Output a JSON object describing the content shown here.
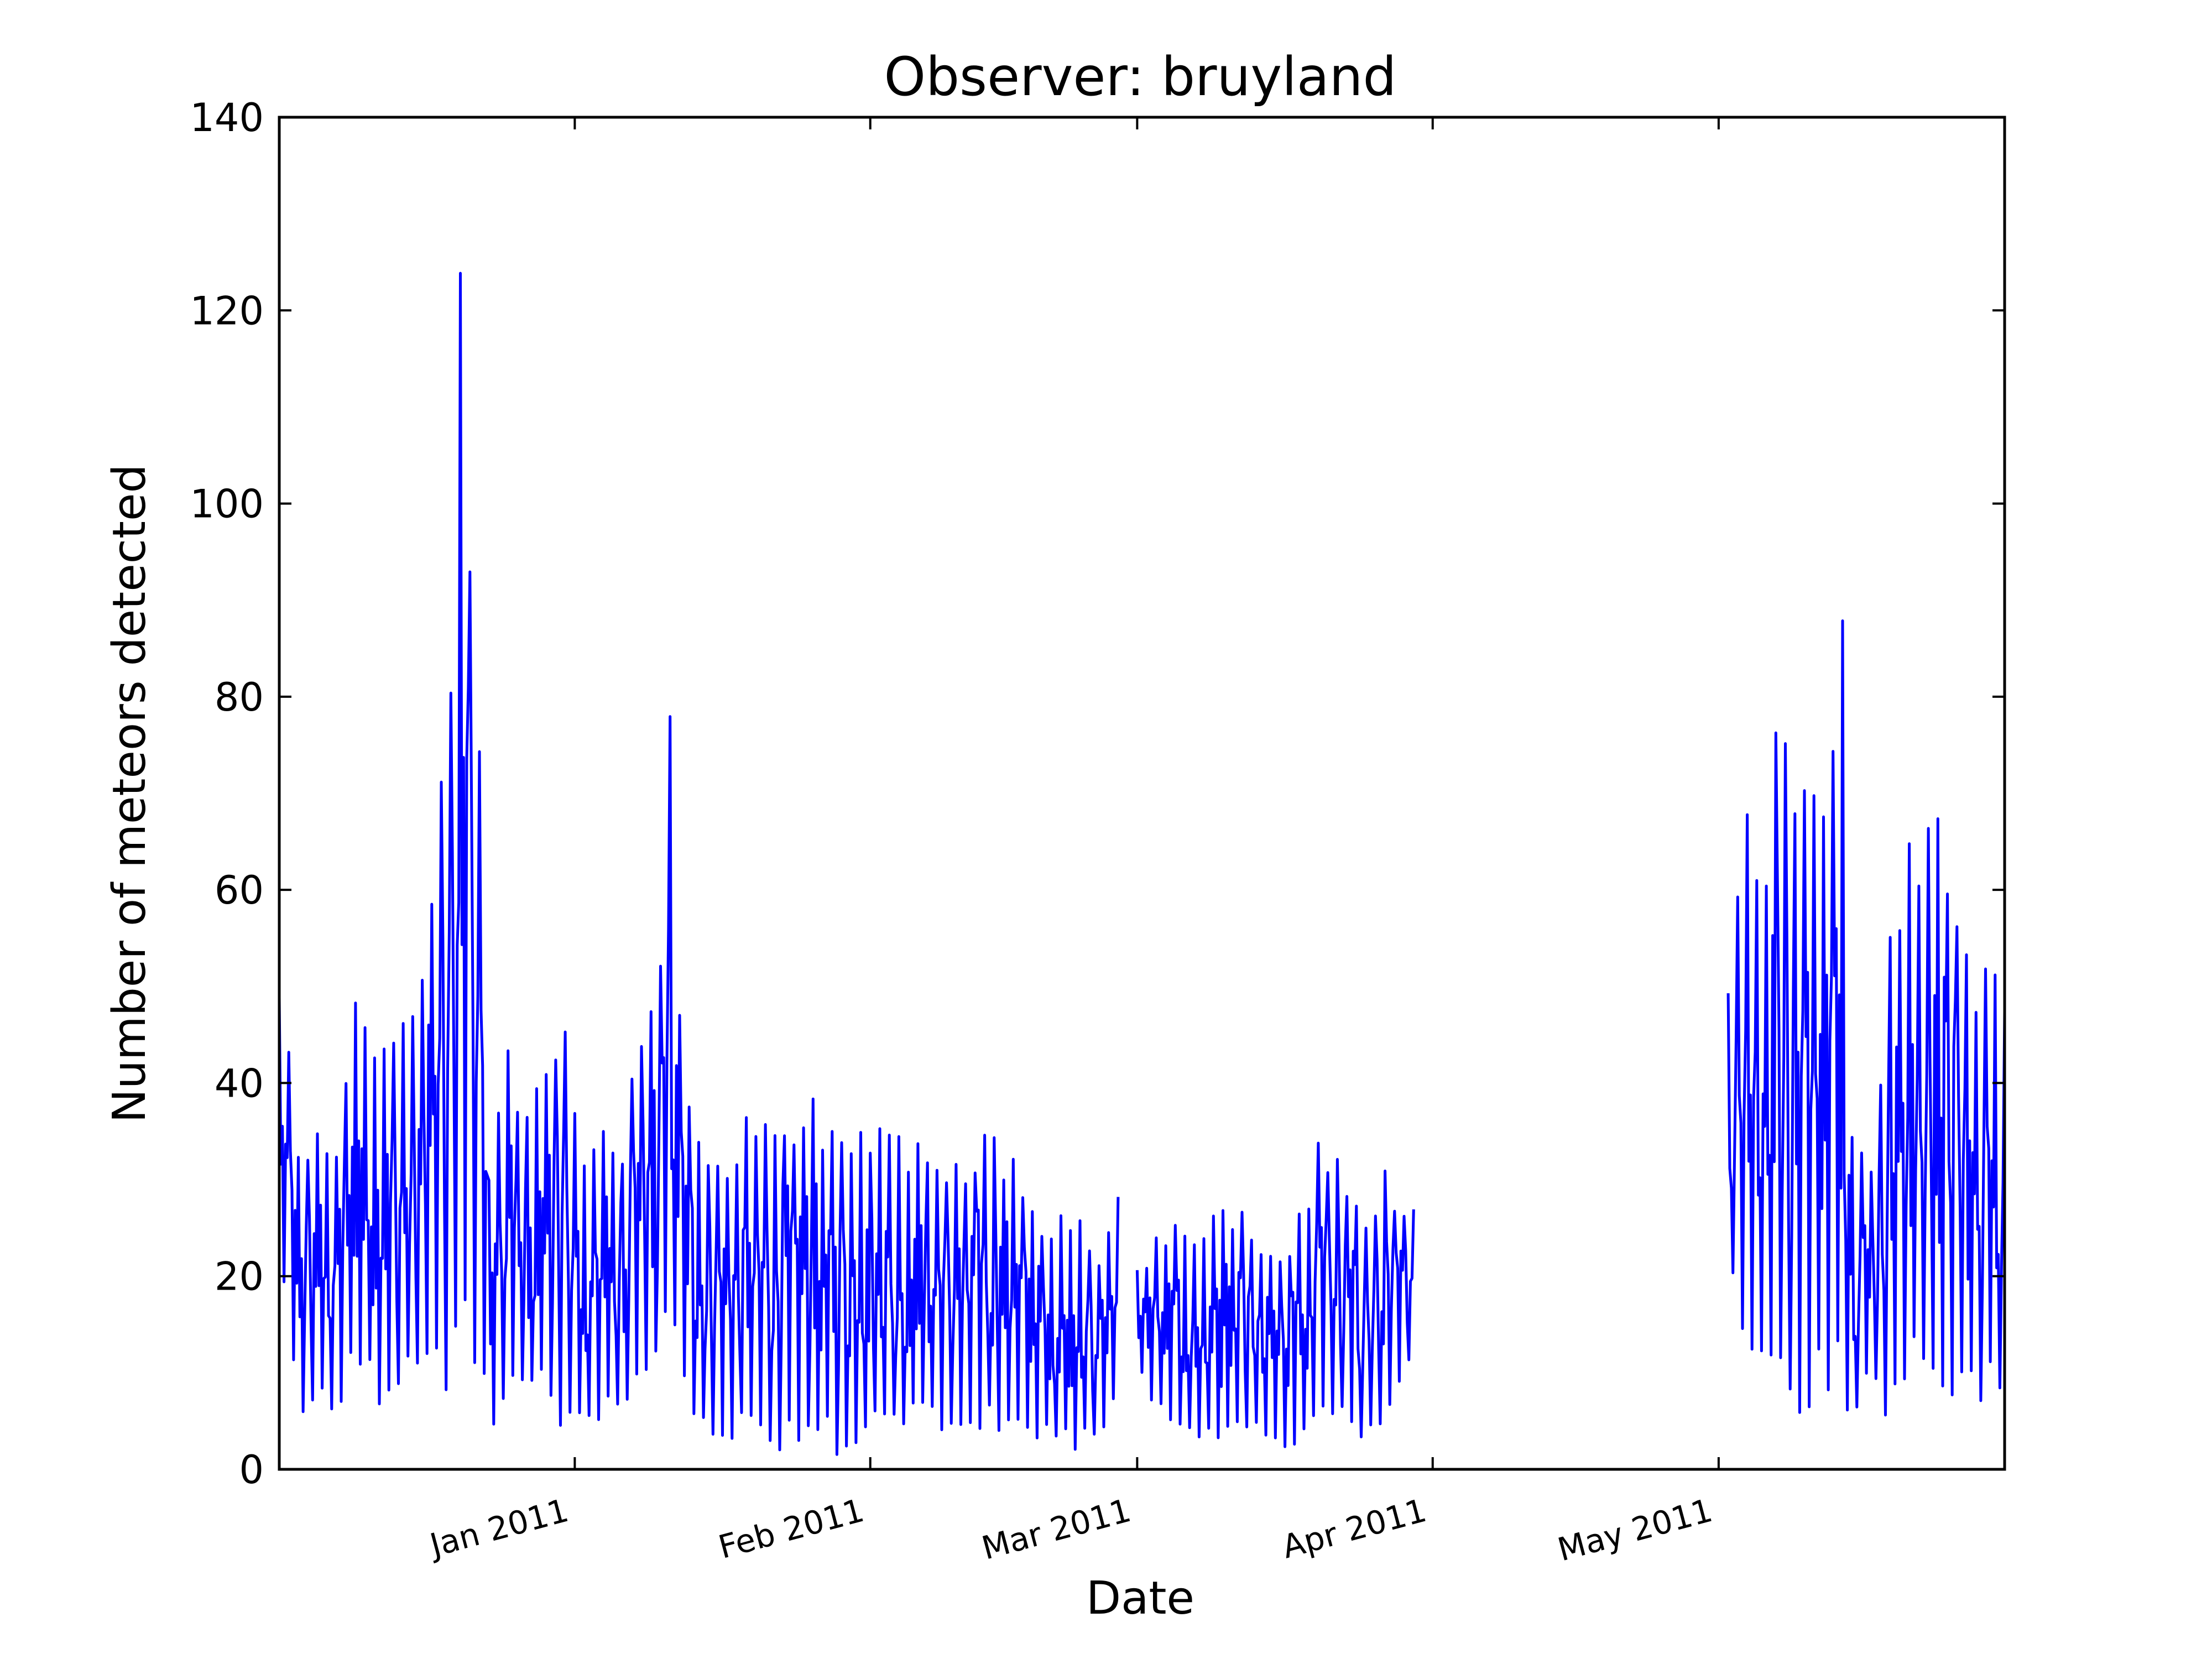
{
  "chart_data": {
    "type": "line",
    "title": "Observer: bruyland",
    "xlabel": "Date",
    "ylabel": "Number of meteors detected",
    "xlim": [
      "2010-12-01",
      "2011-05-31"
    ],
    "ylim": [
      0,
      140
    ],
    "yticks": [
      0,
      20,
      40,
      60,
      80,
      100,
      120,
      140
    ],
    "xticks": [
      {
        "date": "2011-01-01",
        "label": "Jan 2011"
      },
      {
        "date": "2011-02-01",
        "label": "Feb 2011"
      },
      {
        "date": "2011-03-01",
        "label": "Mar 2011"
      },
      {
        "date": "2011-04-01",
        "label": "Apr 2011"
      },
      {
        "date": "2011-05-01",
        "label": "May 2011"
      }
    ],
    "grid": false,
    "color": "#0000ff",
    "segments": [
      {
        "start": "2010-12-01",
        "end": "2011-02-27",
        "envelope": [
          [
            "2010-12-01",
            20,
            52
          ],
          [
            "2010-12-03",
            5,
            36
          ],
          [
            "2010-12-05",
            6,
            36
          ],
          [
            "2010-12-07",
            5,
            37
          ],
          [
            "2010-12-09",
            10,
            52
          ],
          [
            "2010-12-11",
            7,
            44
          ],
          [
            "2010-12-13",
            6,
            48
          ],
          [
            "2010-12-15",
            8,
            53
          ],
          [
            "2010-12-17",
            8,
            60
          ],
          [
            "2010-12-19",
            6,
            84
          ],
          [
            "2010-12-20",
            8,
            124
          ],
          [
            "2010-12-21",
            10,
            101
          ],
          [
            "2010-12-22",
            12,
            81
          ],
          [
            "2010-12-23",
            3,
            33
          ],
          [
            "2010-12-25",
            7,
            44
          ],
          [
            "2010-12-27",
            8,
            38
          ],
          [
            "2010-12-29",
            8,
            42
          ],
          [
            "2010-12-31",
            2,
            47
          ],
          [
            "2011-01-02",
            4,
            35
          ],
          [
            "2011-01-04",
            4,
            38
          ],
          [
            "2011-01-06",
            6,
            36
          ],
          [
            "2011-01-08",
            6,
            48
          ],
          [
            "2011-01-10",
            10,
            54
          ],
          [
            "2011-01-11",
            12,
            80
          ],
          [
            "2011-01-12",
            8,
            49
          ],
          [
            "2011-01-14",
            4,
            35
          ],
          [
            "2011-01-17",
            3,
            33
          ],
          [
            "2011-01-20",
            2,
            40
          ],
          [
            "2011-01-23",
            2,
            39
          ],
          [
            "2011-01-26",
            3,
            39
          ],
          [
            "2011-01-29",
            1,
            36
          ],
          [
            "2011-02-01",
            4,
            35
          ],
          [
            "2011-02-04",
            3,
            36
          ],
          [
            "2011-02-07",
            5,
            33
          ],
          [
            "2011-02-10",
            3,
            33
          ],
          [
            "2011-02-13",
            4,
            36
          ],
          [
            "2011-02-16",
            4,
            33
          ],
          [
            "2011-02-19",
            3,
            27
          ],
          [
            "2011-02-22",
            2,
            28
          ],
          [
            "2011-02-25",
            2,
            22
          ],
          [
            "2011-02-27",
            9,
            31
          ]
        ]
      },
      {
        "start": "2011-03-01",
        "end": "2011-03-30",
        "envelope": [
          [
            "2011-03-01",
            10,
            21
          ],
          [
            "2011-03-04",
            4,
            26
          ],
          [
            "2011-03-07",
            2,
            24
          ],
          [
            "2011-03-10",
            2,
            28
          ],
          [
            "2011-03-13",
            3,
            26
          ],
          [
            "2011-03-16",
            1,
            22
          ],
          [
            "2011-03-19",
            3,
            29
          ],
          [
            "2011-03-20",
            7,
            34
          ],
          [
            "2011-03-22",
            4,
            34
          ],
          [
            "2011-03-25",
            3,
            26
          ],
          [
            "2011-03-27",
            3,
            31
          ],
          [
            "2011-03-30",
            13,
            27
          ]
        ]
      },
      {
        "start": "2011-05-02",
        "end": "2011-05-31",
        "envelope": [
          [
            "2011-05-02",
            19,
            52
          ],
          [
            "2011-05-04",
            12,
            68
          ],
          [
            "2011-05-06",
            8,
            63
          ],
          [
            "2011-05-07",
            8,
            83
          ],
          [
            "2011-05-09",
            6,
            68
          ],
          [
            "2011-05-10",
            5,
            72
          ],
          [
            "2011-05-12",
            8,
            68
          ],
          [
            "2011-05-13",
            6,
            82
          ],
          [
            "2011-05-14",
            6,
            95
          ],
          [
            "2011-05-15",
            5,
            38
          ],
          [
            "2011-05-17",
            10,
            31
          ],
          [
            "2011-05-19",
            4,
            59
          ],
          [
            "2011-05-21",
            9,
            69
          ],
          [
            "2011-05-23",
            6,
            70
          ],
          [
            "2011-05-25",
            7,
            68
          ],
          [
            "2011-05-28",
            6,
            54
          ],
          [
            "2011-05-31",
            8,
            50
          ]
        ]
      }
    ]
  }
}
